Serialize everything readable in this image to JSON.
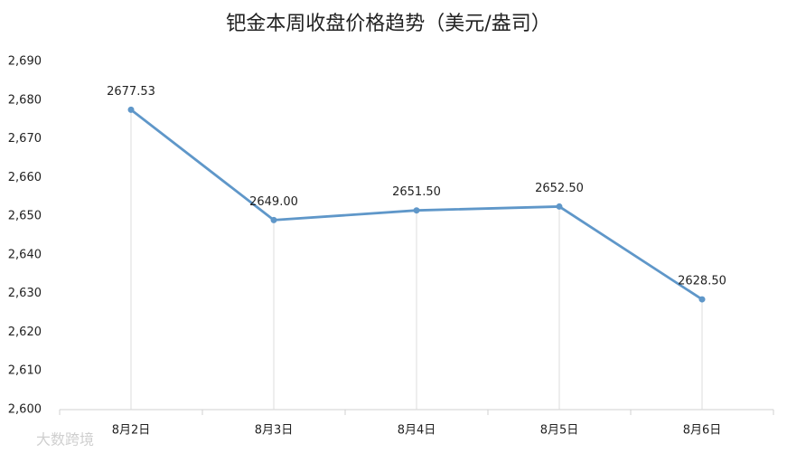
{
  "chart_data": {
    "type": "line",
    "title": "钯金本周收盘价格趋势（美元/盎司）",
    "categories": [
      "8月2日",
      "8月3日",
      "8月4日",
      "8月5日",
      "8月6日"
    ],
    "values": [
      2677.53,
      2649,
      2651.5,
      2652.5,
      2628.5
    ],
    "value_labels": [
      "2677.53",
      "2649.00",
      "2651.50",
      "2652.50",
      "2628.50"
    ],
    "color": "#5f97c9",
    "ylim": [
      2600,
      2690
    ],
    "yticks": [
      {
        "value": 2600,
        "label": "2,600"
      },
      {
        "value": 2610,
        "label": "2,610"
      },
      {
        "value": 2620,
        "label": "2,620"
      },
      {
        "value": 2630,
        "label": "2,630"
      },
      {
        "value": 2640,
        "label": "2,640"
      },
      {
        "value": 2650,
        "label": "2,650"
      },
      {
        "value": 2660,
        "label": "2,660"
      },
      {
        "value": 2670,
        "label": "2,670"
      },
      {
        "value": 2680,
        "label": "2,680"
      },
      {
        "value": 2690,
        "label": "2,690"
      }
    ],
    "drop_lines": true,
    "watermark": "大数跨境"
  }
}
